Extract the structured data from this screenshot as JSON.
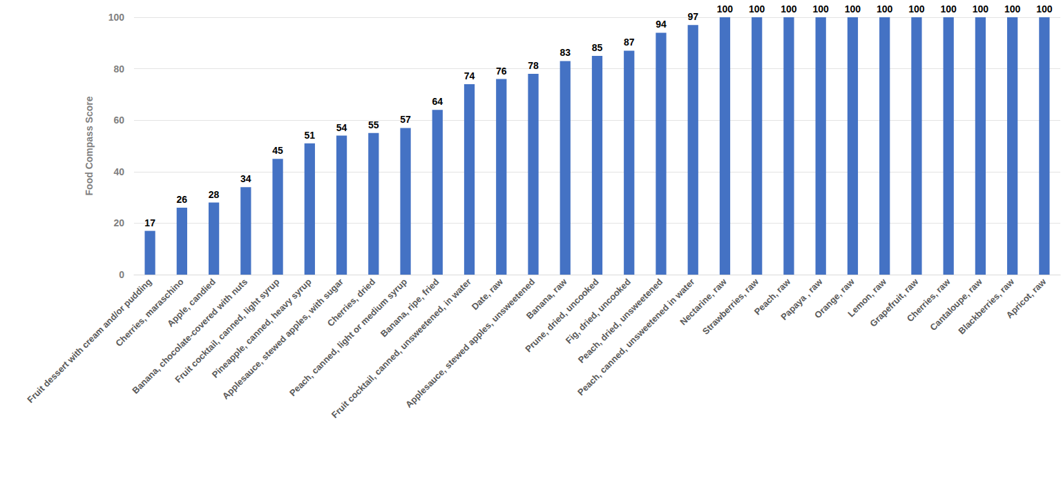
{
  "chart_data": {
    "type": "bar",
    "y_label": "Food Compass Score",
    "categories": [
      "Fruit dessert with cream and/or pudding",
      "Cherries, maraschino",
      "Apple, candied",
      "Banana, chocolate-covered with nuts",
      "Fruit cocktail, canned, light syrup",
      "Pineapple, canned, heavy syrup",
      "Applesauce, stewed apples, with sugar",
      "Cherries, dried",
      "Peach, canned, light or medium syrup",
      "Banana, ripe, fried",
      "Fruit cocktail, canned, unsweetened, in water",
      "Date, raw",
      "Applesauce, stewed apples, unsweetened",
      "Banana, raw",
      "Prune, dried, uncooked",
      "Fig, dried, uncooked",
      "Peach, dried, unsweetened",
      "Peach, canned, unsweetened in water",
      "Nectarine, raw",
      "Strawberries, raw",
      "Peach, raw",
      "Papaya , raw",
      "Orange, raw",
      "Lemon, raw",
      "Grapefruit, raw",
      "Cherries, raw",
      "Cantaloupe, raw",
      "Blackberries, raw",
      "Apricot, raw"
    ],
    "values": [
      17,
      26,
      28,
      34,
      45,
      51,
      54,
      55,
      57,
      64,
      74,
      76,
      78,
      83,
      85,
      87,
      94,
      97,
      100,
      100,
      100,
      100,
      100,
      100,
      100,
      100,
      100,
      100,
      100
    ],
    "color": "#4472c4",
    "ylim": [
      0,
      100
    ],
    "yticks": [
      0,
      20,
      40,
      60,
      80,
      100
    ],
    "grid": true,
    "data_labels": true
  }
}
